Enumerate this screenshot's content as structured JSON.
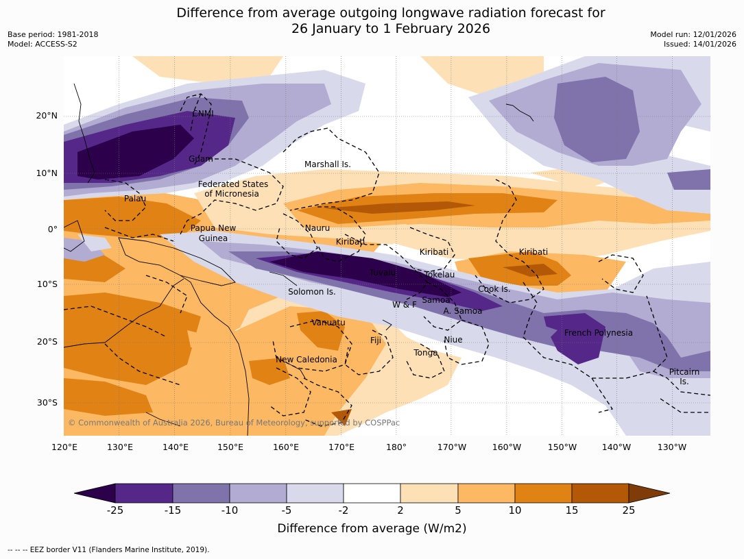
{
  "title": {
    "line1": "Difference from average outgoing longwave radiation forecast for",
    "line2": "26 January to 1 February 2026"
  },
  "meta": {
    "base_period": "Base period: 1981-2018",
    "model": "Model: ACCESS-S2",
    "model_run": "Model run: 12/01/2026",
    "issued": "Issued: 14/01/2026"
  },
  "axes": {
    "lat_ticks": [
      "20°N",
      "10°N",
      "0°",
      "10°S",
      "20°S",
      "30°S"
    ],
    "lon_ticks": [
      "120°E",
      "130°E",
      "140°E",
      "150°E",
      "160°E",
      "170°E",
      "180°",
      "170°W",
      "160°W",
      "150°W",
      "140°W",
      "130°W"
    ]
  },
  "regions": {
    "cnmi": "CNMI",
    "guam": "Guam",
    "marshall": "Marshall Is.",
    "fsm1": "Federated States",
    "fsm2": "of Micronesia",
    "palau": "Palau",
    "png1": "Papua New",
    "png2": "Guinea",
    "nauru": "Nauru",
    "kiribati_w": "Kiribati",
    "kiribati_c": "Kiribati",
    "kiribati_e": "Kiribati",
    "tuvalu": "Tuvalu",
    "tokelau": "Tokelau",
    "cook": "Cook Is.",
    "solomon": "Solomon Is.",
    "wf": "W & F",
    "samoa": "Samoa",
    "asamoa": "A. Samoa",
    "vanuatu": "Vanuatu",
    "fiji": "Fiji",
    "niue": "Niue",
    "tonga": "Tonga",
    "french_polynesia": "French Polynesia",
    "new_caledonia": "New Caledonia",
    "pitcairn1": "Pitcairn",
    "pitcairn2": "Is."
  },
  "copyright": "© Commonwealth of Australia 2026, Bureau of Meteorology, supported by COSPPac",
  "colorbar": {
    "labels": [
      "-25",
      "-15",
      "-10",
      "-5",
      "-2",
      "2",
      "5",
      "10",
      "15",
      "25"
    ],
    "colors": [
      "#2d004b",
      "#542788",
      "#8073ac",
      "#b2abd2",
      "#d8daeb",
      "#ffffff",
      "#fee0b6",
      "#fdb863",
      "#e08214",
      "#b35806",
      "#7f3b08"
    ],
    "title": "Difference from average (W/m2)"
  },
  "footer": "-- -- -- EEZ border V11 (Flanders Marine Institute, 2019)."
}
